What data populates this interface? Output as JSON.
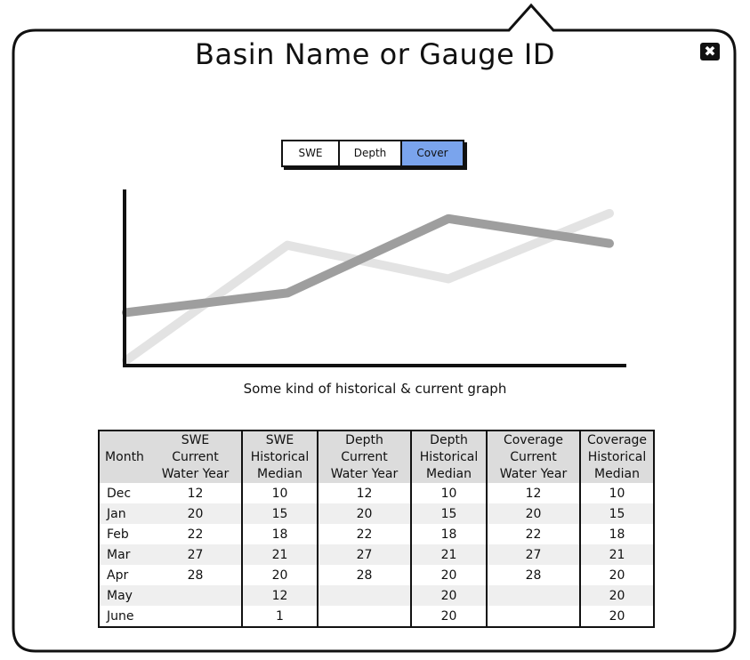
{
  "window": {
    "title": "Basin Name or Gauge ID",
    "close_label": "✖"
  },
  "tabs": [
    {
      "label": "SWE",
      "active": false
    },
    {
      "label": "Depth",
      "active": false
    },
    {
      "label": "Cover",
      "active": true
    }
  ],
  "colors": {
    "active_tab": "#7aa4ed",
    "current_series": "#9e9e9e",
    "historical_series": "#e3e3e3",
    "header_bg": "#dcdcdc"
  },
  "chart_data": {
    "type": "line",
    "title": "",
    "xlabel": "",
    "ylabel": "",
    "x": [
      0,
      1,
      2,
      3
    ],
    "ylim": [
      0,
      100
    ],
    "grid": false,
    "series": [
      {
        "key": "current",
        "values": [
          29,
          40,
          82,
          68
        ],
        "color": "#9e9e9e"
      },
      {
        "key": "historical",
        "values": [
          2,
          67,
          48,
          85
        ],
        "color": "#e3e3e3"
      }
    ]
  },
  "caption": "Some kind of historical & current graph",
  "table": {
    "month_header": "Month",
    "headers": [
      {
        "top": "SWE",
        "mid": "Current",
        "bottom": "Water Year"
      },
      {
        "top": "SWE",
        "mid": "Historical",
        "bottom": "Median"
      },
      {
        "top": "Depth",
        "mid": "Current",
        "bottom": "Water Year"
      },
      {
        "top": "Depth",
        "mid": "Historical",
        "bottom": "Median"
      },
      {
        "top": "Coverage",
        "mid": "Current",
        "bottom": "Water Year"
      },
      {
        "top": "Coverage",
        "mid": "Historical",
        "bottom": "Median"
      }
    ],
    "rows": [
      {
        "month": "Dec",
        "cells": [
          "12",
          "10",
          "12",
          "10",
          "12",
          "10"
        ]
      },
      {
        "month": "Jan",
        "cells": [
          "20",
          "15",
          "20",
          "15",
          "20",
          "15"
        ]
      },
      {
        "month": "Feb",
        "cells": [
          "22",
          "18",
          "22",
          "18",
          "22",
          "18"
        ]
      },
      {
        "month": "Mar",
        "cells": [
          "27",
          "21",
          "27",
          "21",
          "27",
          "21"
        ]
      },
      {
        "month": "Apr",
        "cells": [
          "28",
          "20",
          "28",
          "20",
          "28",
          "20"
        ]
      },
      {
        "month": "May",
        "cells": [
          "",
          "12",
          "",
          "20",
          "",
          "20"
        ]
      },
      {
        "month": "June",
        "cells": [
          "",
          "1",
          "",
          "20",
          "",
          "20"
        ]
      }
    ]
  }
}
